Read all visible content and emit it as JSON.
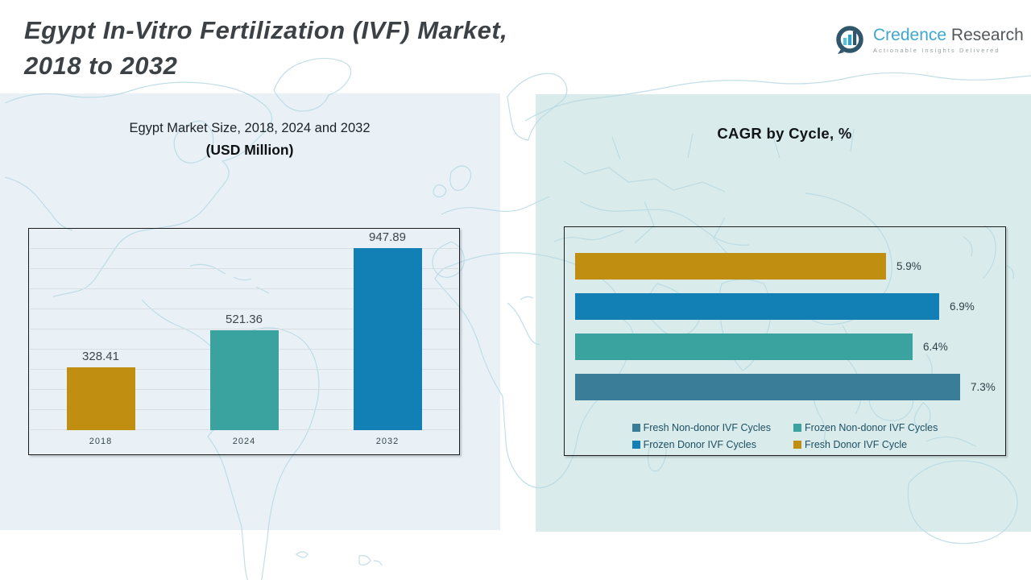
{
  "header": {
    "title_line1": "Egypt In-Vitro Fertilization (IVF) Market,",
    "title_line2": "2018 to 2032",
    "logo": {
      "brand_primary": "Credence",
      "brand_secondary": "Research",
      "tagline": "Actionable Insights Delivered",
      "icon": "bar-chart-circle-icon",
      "accent_color": "#3ea8cc"
    }
  },
  "colors": {
    "gold": "#c08e10",
    "teal": "#3aa3a0",
    "blue": "#1280b5",
    "steel_blue": "#3a7d99",
    "panel_left_bg": "#e9f1f7",
    "panel_right_bg": "#d9eceb",
    "map_line": "#b7d8e3",
    "grid_line": "#d9dee2",
    "box_border": "#1c1c1c"
  },
  "chart_data": [
    {
      "type": "bar",
      "title": "Egypt Market Size, 2018, 2024 and 2032",
      "subtitle": "(USD Million)",
      "categories": [
        "2018",
        "2024",
        "2032"
      ],
      "values": [
        328.41,
        521.36,
        947.89
      ],
      "value_labels": [
        "328.41",
        "521.36",
        "947.89"
      ],
      "bar_colors": [
        "#c08e10",
        "#3aa3a0",
        "#1280b5"
      ],
      "xlabel": "",
      "ylabel": "",
      "ylim": [
        0,
        1050
      ],
      "grid": true,
      "legend_position": "none"
    },
    {
      "type": "bar",
      "orientation": "horizontal",
      "title": "CAGR by Cycle, %",
      "categories": [
        "Fresh Donor IVF Cycle",
        "Frozen Donor IVF Cycles",
        "Frozen Non-donor IVF Cycles",
        "Fresh Non-donor IVF Cycles"
      ],
      "values": [
        5.9,
        6.9,
        6.4,
        7.3
      ],
      "value_labels": [
        "5.9%",
        "6.9%",
        "6.4%",
        "7.3%"
      ],
      "bar_colors": [
        "#c08e10",
        "#1280b5",
        "#3aa3a0",
        "#3a7d99"
      ],
      "xlabel": "",
      "ylabel": "",
      "xlim": [
        0,
        8
      ],
      "grid": false,
      "legend_position": "bottom-inside",
      "legend": [
        {
          "label": "Fresh Non-donor IVF Cycles",
          "color": "#3a7d99"
        },
        {
          "label": "Frozen Non-donor IVF Cycles",
          "color": "#3aa3a0"
        },
        {
          "label": "Frozen Donor IVF Cycles",
          "color": "#1280b5"
        },
        {
          "label": "Fresh Donor IVF Cycle",
          "color": "#c08e10"
        }
      ]
    }
  ]
}
